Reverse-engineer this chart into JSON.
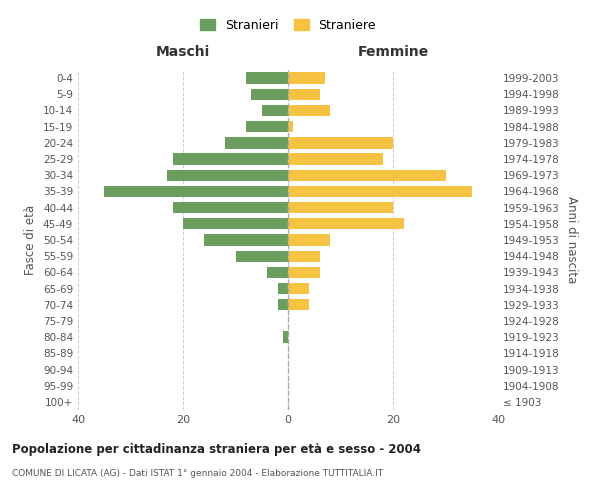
{
  "age_groups": [
    "100+",
    "95-99",
    "90-94",
    "85-89",
    "80-84",
    "75-79",
    "70-74",
    "65-69",
    "60-64",
    "55-59",
    "50-54",
    "45-49",
    "40-44",
    "35-39",
    "30-34",
    "25-29",
    "20-24",
    "15-19",
    "10-14",
    "5-9",
    "0-4"
  ],
  "birth_years": [
    "≤ 1903",
    "1904-1908",
    "1909-1913",
    "1914-1918",
    "1919-1923",
    "1924-1928",
    "1929-1933",
    "1934-1938",
    "1939-1943",
    "1944-1948",
    "1949-1953",
    "1954-1958",
    "1959-1963",
    "1964-1968",
    "1969-1973",
    "1974-1978",
    "1979-1983",
    "1984-1988",
    "1989-1993",
    "1994-1998",
    "1999-2003"
  ],
  "males": [
    0,
    0,
    0,
    0,
    1,
    0,
    2,
    2,
    4,
    10,
    16,
    20,
    22,
    35,
    23,
    22,
    12,
    8,
    5,
    7,
    8
  ],
  "females": [
    0,
    0,
    0,
    0,
    0,
    0,
    4,
    4,
    6,
    6,
    8,
    22,
    20,
    35,
    30,
    18,
    20,
    1,
    8,
    6,
    7
  ],
  "male_color": "#6b9e5e",
  "female_color": "#f5c242",
  "grid_color": "#cccccc",
  "background_color": "#ffffff",
  "title": "Popolazione per cittadinanza straniera per età e sesso - 2004",
  "subtitle": "COMUNE DI LICATA (AG) - Dati ISTAT 1° gennaio 2004 - Elaborazione TUTTITALIA.IT",
  "ylabel_left": "Fasce di età",
  "ylabel_right": "Anni di nascita",
  "xlabel_left": "Maschi",
  "xlabel_right": "Femmine",
  "legend_male": "Stranieri",
  "legend_female": "Straniere",
  "xlim": 40,
  "xticks": [
    -40,
    -20,
    0,
    20,
    40
  ],
  "xticklabels": [
    "40",
    "20",
    "0",
    "20",
    "40"
  ]
}
